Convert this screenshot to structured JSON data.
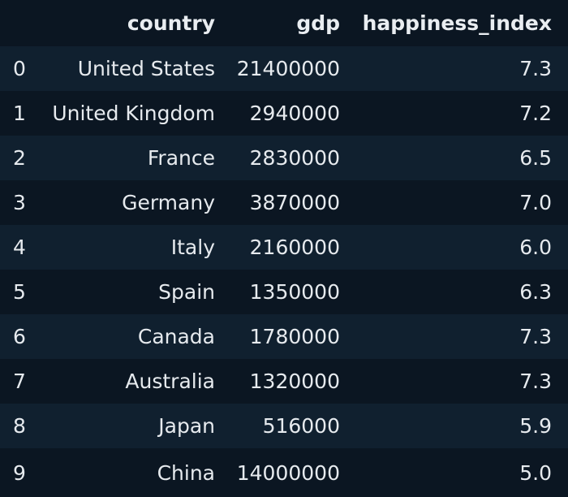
{
  "table": {
    "columns": [
      "",
      "country",
      "gdp",
      "happiness_index"
    ],
    "rows": [
      {
        "index": "0",
        "country": "United States",
        "gdp": "21400000",
        "happiness_index": "7.3"
      },
      {
        "index": "1",
        "country": "United Kingdom",
        "gdp": "2940000",
        "happiness_index": "7.2"
      },
      {
        "index": "2",
        "country": "France",
        "gdp": "2830000",
        "happiness_index": "6.5"
      },
      {
        "index": "3",
        "country": "Germany",
        "gdp": "3870000",
        "happiness_index": "7.0"
      },
      {
        "index": "4",
        "country": "Italy",
        "gdp": "2160000",
        "happiness_index": "6.0"
      },
      {
        "index": "5",
        "country": "Spain",
        "gdp": "1350000",
        "happiness_index": "6.3"
      },
      {
        "index": "6",
        "country": "Canada",
        "gdp": "1780000",
        "happiness_index": "7.3"
      },
      {
        "index": "7",
        "country": "Australia",
        "gdp": "1320000",
        "happiness_index": "7.3"
      },
      {
        "index": "8",
        "country": "Japan",
        "gdp": "516000",
        "happiness_index": "5.9"
      },
      {
        "index": "9",
        "country": "China",
        "gdp": "14000000",
        "happiness_index": "5.0"
      }
    ]
  },
  "colors": {
    "background": "#0b1622",
    "row_stripe": "#10202f",
    "text": "#e6eaee"
  }
}
